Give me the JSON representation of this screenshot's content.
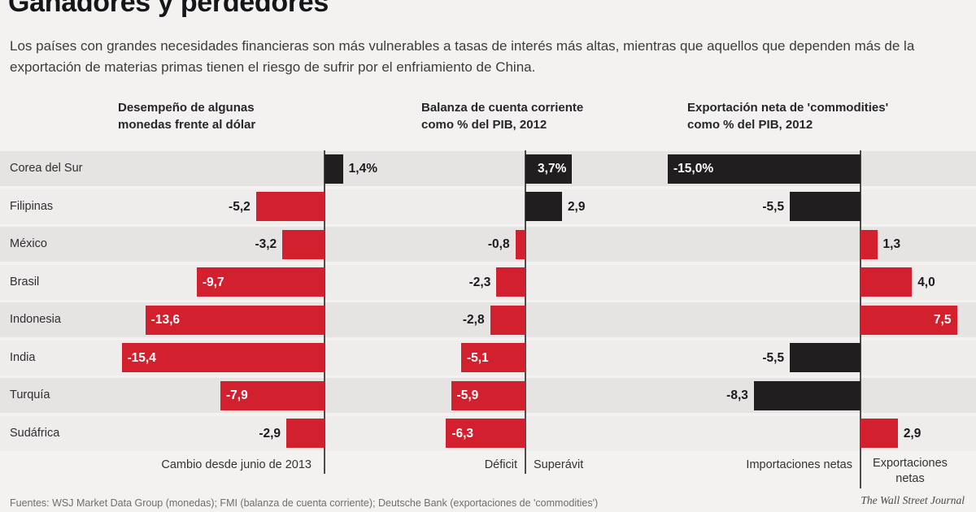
{
  "title": "Ganadores y perdedores",
  "subtitle": "Los países con grandes necesidades financieras son más vulnerables a tasas de interés más altas, mientras que aquellos que dependen más de la exportación de materias primas tienen el riesgo de sufrir por el enfriamiento de China.",
  "colors": {
    "red": "#d2202e",
    "black": "#201e1e",
    "axis": "#4d4d4d"
  },
  "footer": {
    "sources": "Fuentes: WSJ Market Data Group (monedas); FMI (balanza de cuenta corriente); Deutsche Bank (exportaciones de 'commodities')",
    "credit": "The Wall Street Journal"
  },
  "chart_data": {
    "type": "bar",
    "orientation": "horizontal",
    "categories": [
      "Corea del Sur",
      "Filipinas",
      "México",
      "Brasil",
      "Indonesia",
      "India",
      "Turquía",
      "Sudáfrica"
    ],
    "panels": [
      {
        "header": "Desempeño de algunas monedas frente al dólar",
        "axis_label_bottom": "Cambio desde junio de 2013",
        "unit": "%",
        "values": [
          1.4,
          -5.2,
          -3.2,
          -9.7,
          -13.6,
          -15.4,
          -7.9,
          -2.9
        ],
        "labels": [
          "1,4%",
          "-5,2",
          "-3,2",
          "-9,7",
          "-13,6",
          "-15,4",
          "-7,9",
          "-2,9"
        ],
        "bar_colors": [
          "black",
          "red",
          "red",
          "red",
          "red",
          "red",
          "red",
          "red"
        ],
        "label_inside": [
          false,
          false,
          false,
          true,
          true,
          true,
          true,
          false
        ]
      },
      {
        "header": "Balanza de cuenta corriente como % del PIB, 2012",
        "axis_label_negative": "Déficit",
        "axis_label_positive": "Superávit",
        "unit": "%",
        "values": [
          3.7,
          2.9,
          -0.8,
          -2.3,
          -2.8,
          -5.1,
          -5.9,
          -6.3
        ],
        "labels": [
          "3,7%",
          "2,9",
          "-0,8",
          "-2,3",
          "-2,8",
          "-5,1",
          "-5,9",
          "-6,3"
        ],
        "bar_colors": [
          "black",
          "black",
          "red",
          "red",
          "red",
          "red",
          "red",
          "red"
        ],
        "label_inside": [
          true,
          false,
          false,
          false,
          false,
          true,
          true,
          true
        ]
      },
      {
        "header": "Exportación neta de 'commodities' como % del PIB, 2012",
        "axis_label_negative": "Importaciones netas",
        "axis_label_positive": "Exportaciones netas",
        "unit": "%",
        "values": [
          -15.0,
          -5.5,
          1.3,
          4.0,
          7.5,
          -5.5,
          -8.3,
          2.9
        ],
        "labels": [
          "-15,0%",
          "-5,5",
          "1,3",
          "4,0",
          "7,5",
          "-5,5",
          "-8,3",
          "2,9"
        ],
        "bar_colors": [
          "black",
          "black",
          "red",
          "red",
          "red",
          "black",
          "black",
          "red"
        ],
        "label_inside": [
          true,
          false,
          false,
          false,
          true,
          false,
          false,
          false
        ]
      }
    ],
    "legend": {
      "negative_color_meaning": "depreciación / déficit / importaciones netas (rojo u oscuro según panel)",
      "grid": false
    }
  }
}
